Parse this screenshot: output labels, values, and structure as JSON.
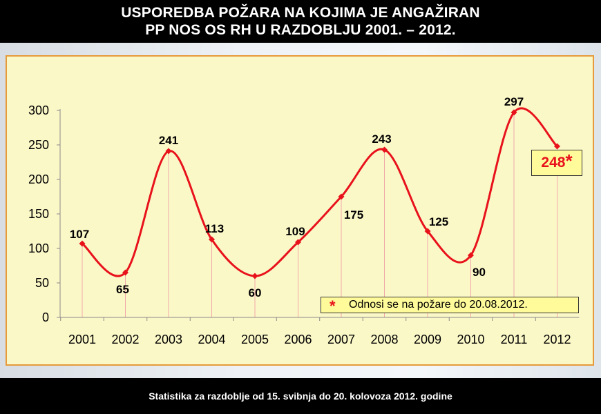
{
  "header": {
    "line1": "USPOREDBA POŽARA NA KOJIMA JE ANGAŽIRAN",
    "line2": "PP NOS OS RH  U  RAZDOBLJU  2001. – 2012."
  },
  "footer": {
    "text": "Statistika za razdoblje od 15. svibnja do 20. kolovoza 2012. godine"
  },
  "colors": {
    "line": "#e8121b",
    "plot_background": "#fbf8c8",
    "frame_border": "#e69a3a"
  },
  "chart_data": {
    "type": "line",
    "categories": [
      "2001",
      "2002",
      "2003",
      "2004",
      "2005",
      "2006",
      "2007",
      "2008",
      "2009",
      "2010",
      "2011",
      "2012"
    ],
    "values": [
      107,
      65,
      241,
      113,
      60,
      109,
      175,
      243,
      125,
      90,
      297,
      248
    ],
    "labels": [
      "107",
      "65",
      "241",
      "113",
      "60",
      "109",
      "175",
      "243",
      "125",
      "90",
      "297",
      "248"
    ],
    "yticks": [
      "0",
      "50",
      "100",
      "150",
      "200",
      "250",
      "300"
    ],
    "ylim": [
      0,
      300
    ],
    "smooth": true,
    "grid": false,
    "last_point_marker": "*",
    "legend": {
      "marker": "*",
      "text": "Odnosi se na požare do 20.08.2012.",
      "position": "bottom-right"
    }
  }
}
